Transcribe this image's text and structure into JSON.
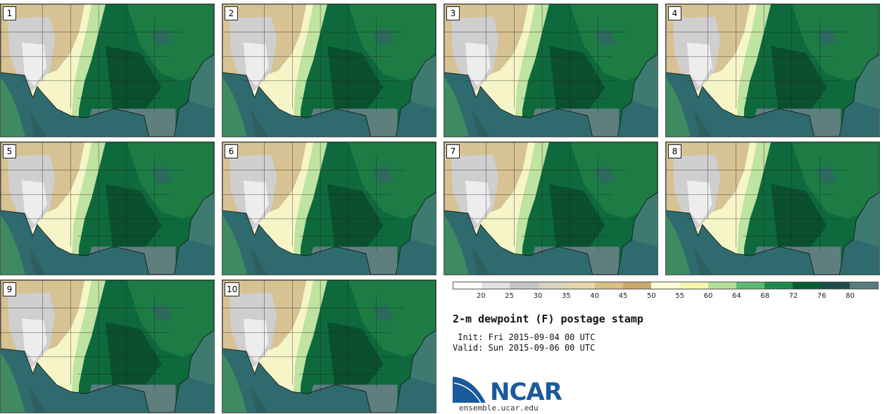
{
  "panels": [
    {
      "label": "1"
    },
    {
      "label": "2"
    },
    {
      "label": "3"
    },
    {
      "label": "4"
    },
    {
      "label": "5"
    },
    {
      "label": "6"
    },
    {
      "label": "7"
    },
    {
      "label": "8"
    },
    {
      "label": "9"
    },
    {
      "label": "10"
    }
  ],
  "colorbar": {
    "ticks": [
      "20",
      "25",
      "30",
      "35",
      "40",
      "45",
      "50",
      "55",
      "60",
      "64",
      "68",
      "72",
      "76",
      "80"
    ],
    "colors": [
      "#ffffff",
      "#e2e2e2",
      "#c6c6c6",
      "#d9d2bc",
      "#e7d6ac",
      "#d8bf84",
      "#c9aa6c",
      "#fdfdd6",
      "#f6f6ae",
      "#b4dd98",
      "#5cb872",
      "#1d8a4c",
      "#085d35",
      "#1f4b4b",
      "#5a7b7d"
    ]
  },
  "title": "2-m dewpoint (F) postage stamp",
  "init": " Init: Fri 2015-09-04 00 UTC",
  "valid": "Valid: Sun 2015-09-06 00 UTC",
  "logo": {
    "text": "NCAR",
    "url": "ensemble.ucar.edu"
  }
}
